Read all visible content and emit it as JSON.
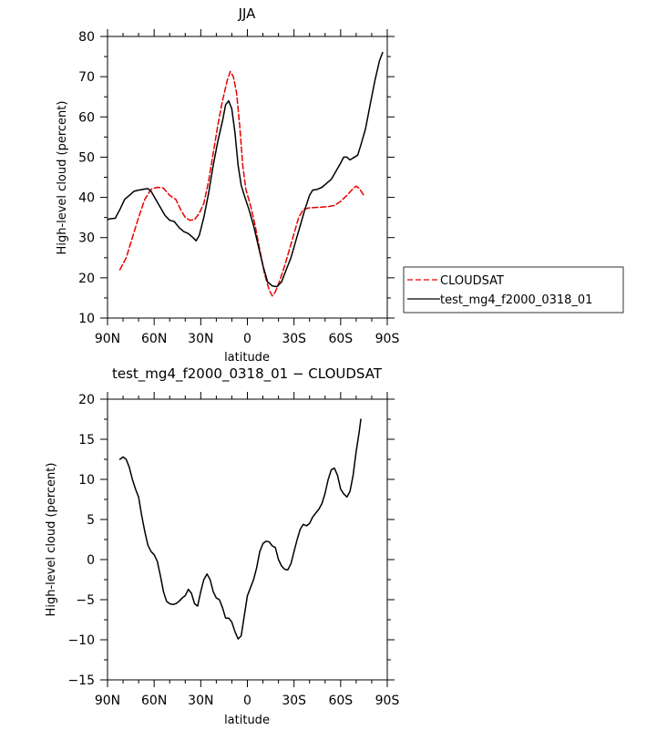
{
  "chart_data": [
    {
      "type": "line",
      "title": "JJA",
      "xlabel": "latitude",
      "ylabel": "High-level cloud (percent)",
      "xlim": [
        -90,
        90
      ],
      "ylim": [
        10,
        80
      ],
      "x_ticks": [
        -90,
        -60,
        -30,
        0,
        30,
        60,
        90
      ],
      "x_tick_labels": [
        "90N",
        "60N",
        "30N",
        "0",
        "30S",
        "60S",
        "90S"
      ],
      "y_ticks": [
        10,
        20,
        30,
        40,
        50,
        60,
        70,
        80
      ],
      "y_tick_labels": [
        "10",
        "20",
        "30",
        "40",
        "50",
        "60",
        "70",
        "80"
      ],
      "legend": {
        "placement": "right"
      },
      "series": [
        {
          "name": "CLOUDSAT",
          "color": "#e60000",
          "dash": "dashed",
          "points": [
            [
              -82,
              22
            ],
            [
              -78,
              25
            ],
            [
              -74,
              30
            ],
            [
              -70,
              35
            ],
            [
              -66,
              39.5
            ],
            [
              -62,
              42
            ],
            [
              -58,
              42.5
            ],
            [
              -54,
              42.3
            ],
            [
              -50,
              40.5
            ],
            [
              -46,
              39.5
            ],
            [
              -43,
              37
            ],
            [
              -40,
              35
            ],
            [
              -37,
              34.3
            ],
            [
              -34,
              34.5
            ],
            [
              -31,
              36
            ],
            [
              -28,
              38.5
            ],
            [
              -25,
              44
            ],
            [
              -22,
              51
            ],
            [
              -19,
              58
            ],
            [
              -16,
              64
            ],
            [
              -13,
              69
            ],
            [
              -11,
              71.3
            ],
            [
              -9,
              70
            ],
            [
              -7,
              66
            ],
            [
              -5,
              58
            ],
            [
              -3,
              48
            ],
            [
              -1,
              42
            ],
            [
              2,
              38
            ],
            [
              5,
              33
            ],
            [
              8,
              27
            ],
            [
              11,
              21
            ],
            [
              14,
              17
            ],
            [
              16,
              15.5
            ],
            [
              18,
              16.5
            ],
            [
              21,
              19.5
            ],
            [
              24,
              23
            ],
            [
              27,
              27
            ],
            [
              30,
              31
            ],
            [
              33,
              35
            ],
            [
              36,
              37
            ],
            [
              40,
              37.4
            ],
            [
              44,
              37.5
            ],
            [
              48,
              37.6
            ],
            [
              52,
              37.7
            ],
            [
              56,
              38
            ],
            [
              60,
              39
            ],
            [
              64,
              40.5
            ],
            [
              68,
              42.2
            ],
            [
              70,
              42.8
            ],
            [
              72,
              42.2
            ],
            [
              75,
              40.5
            ]
          ]
        },
        {
          "name": "test_mg4_f2000_0318_01",
          "color": "#000000",
          "dash": "solid",
          "points": [
            [
              -90,
              34.5
            ],
            [
              -88,
              34.7
            ],
            [
              -85,
              34.8
            ],
            [
              -82,
              37
            ],
            [
              -79,
              39.5
            ],
            [
              -76,
              40.5
            ],
            [
              -73,
              41.5
            ],
            [
              -70,
              41.8
            ],
            [
              -67,
              42
            ],
            [
              -64,
              42.2
            ],
            [
              -62,
              41.5
            ],
            [
              -59,
              39.5
            ],
            [
              -56,
              37.5
            ],
            [
              -53,
              35.5
            ],
            [
              -50,
              34.3
            ],
            [
              -47,
              34
            ],
            [
              -44,
              32.5
            ],
            [
              -41,
              31.5
            ],
            [
              -38,
              31
            ],
            [
              -35,
              30
            ],
            [
              -33,
              29.2
            ],
            [
              -31,
              30.5
            ],
            [
              -28,
              35
            ],
            [
              -25,
              41
            ],
            [
              -22,
              48
            ],
            [
              -19,
              54
            ],
            [
              -16,
              59
            ],
            [
              -14,
              63
            ],
            [
              -12,
              64
            ],
            [
              -10,
              62
            ],
            [
              -8,
              56
            ],
            [
              -6,
              48
            ],
            [
              -4,
              43
            ],
            [
              -2,
              40.5
            ],
            [
              1,
              37
            ],
            [
              4,
              33
            ],
            [
              7,
              28
            ],
            [
              10,
              23
            ],
            [
              13,
              19
            ],
            [
              16,
              18
            ],
            [
              19,
              17.8
            ],
            [
              22,
              19
            ],
            [
              25,
              22
            ],
            [
              28,
              25
            ],
            [
              31,
              29
            ],
            [
              34,
              33
            ],
            [
              37,
              37
            ],
            [
              40,
              40.5
            ],
            [
              42,
              41.8
            ],
            [
              45,
              42
            ],
            [
              48,
              42.5
            ],
            [
              51,
              43.5
            ],
            [
              54,
              44.5
            ],
            [
              57,
              46.5
            ],
            [
              60,
              48.5
            ],
            [
              62,
              50
            ],
            [
              64,
              50
            ],
            [
              66,
              49.3
            ],
            [
              68,
              49.8
            ],
            [
              71,
              50.5
            ],
            [
              73,
              53
            ],
            [
              76,
              57
            ],
            [
              79,
              63
            ],
            [
              82,
              69
            ],
            [
              85,
              74
            ],
            [
              87,
              76
            ]
          ]
        }
      ]
    },
    {
      "type": "line",
      "title": "test_mg4_f2000_0318_01 − CLOUDSAT",
      "xlabel": "latitude",
      "ylabel": "High-level cloud (percent)",
      "xlim": [
        -90,
        90
      ],
      "ylim": [
        -15,
        20
      ],
      "x_ticks": [
        -90,
        -60,
        -30,
        0,
        30,
        60,
        90
      ],
      "x_tick_labels": [
        "90N",
        "60N",
        "30N",
        "0",
        "30S",
        "60S",
        "90S"
      ],
      "y_ticks": [
        -15,
        -10,
        -5,
        0,
        5,
        10,
        15,
        20
      ],
      "y_tick_labels": [
        "−15",
        "−10",
        "−5",
        "0",
        "5",
        "10",
        "15",
        "20"
      ],
      "series": [
        {
          "color": "#000000",
          "dash": "solid",
          "points": [
            [
              -82,
              12.5
            ],
            [
              -80,
              12.8
            ],
            [
              -78,
              12.5
            ],
            [
              -76,
              11.5
            ],
            [
              -74,
              10
            ],
            [
              -72,
              8.8
            ],
            [
              -70,
              7.8
            ],
            [
              -68,
              5.5
            ],
            [
              -66,
              3.5
            ],
            [
              -64,
              1.8
            ],
            [
              -62,
              1
            ],
            [
              -60,
              0.6
            ],
            [
              -58,
              -0.2
            ],
            [
              -56,
              -2
            ],
            [
              -54,
              -4
            ],
            [
              -52,
              -5.2
            ],
            [
              -50,
              -5.5
            ],
            [
              -48,
              -5.6
            ],
            [
              -46,
              -5.5
            ],
            [
              -44,
              -5.2
            ],
            [
              -42,
              -4.8
            ],
            [
              -40,
              -4.5
            ],
            [
              -38,
              -3.7
            ],
            [
              -36,
              -4.2
            ],
            [
              -34,
              -5.5
            ],
            [
              -32,
              -5.8
            ],
            [
              -30,
              -4
            ],
            [
              -28,
              -2.5
            ],
            [
              -26,
              -1.8
            ],
            [
              -24,
              -2.5
            ],
            [
              -22,
              -4
            ],
            [
              -20,
              -4.8
            ],
            [
              -18,
              -5
            ],
            [
              -16,
              -6
            ],
            [
              -14,
              -7.3
            ],
            [
              -12,
              -7.3
            ],
            [
              -10,
              -7.8
            ],
            [
              -8,
              -9
            ],
            [
              -6,
              -9.9
            ],
            [
              -4,
              -9.5
            ],
            [
              -2,
              -7
            ],
            [
              0,
              -4.5
            ],
            [
              2,
              -3.5
            ],
            [
              4,
              -2.5
            ],
            [
              6,
              -1
            ],
            [
              8,
              1
            ],
            [
              10,
              2
            ],
            [
              12,
              2.3
            ],
            [
              14,
              2.2
            ],
            [
              16,
              1.7
            ],
            [
              18,
              1.5
            ],
            [
              20,
              0
            ],
            [
              22,
              -0.8
            ],
            [
              24,
              -1.2
            ],
            [
              26,
              -1.3
            ],
            [
              28,
              -0.5
            ],
            [
              30,
              1
            ],
            [
              32,
              2.5
            ],
            [
              34,
              3.8
            ],
            [
              36,
              4.4
            ],
            [
              38,
              4.2
            ],
            [
              40,
              4.5
            ],
            [
              42,
              5.3
            ],
            [
              44,
              5.8
            ],
            [
              46,
              6.3
            ],
            [
              48,
              7
            ],
            [
              50,
              8.3
            ],
            [
              52,
              10
            ],
            [
              54,
              11.2
            ],
            [
              56,
              11.4
            ],
            [
              58,
              10.5
            ],
            [
              60,
              8.8
            ],
            [
              62,
              8.2
            ],
            [
              64,
              7.8
            ],
            [
              66,
              8.5
            ],
            [
              68,
              10.5
            ],
            [
              70,
              13.5
            ],
            [
              72,
              16
            ],
            [
              73,
              17.5
            ]
          ]
        }
      ]
    }
  ]
}
